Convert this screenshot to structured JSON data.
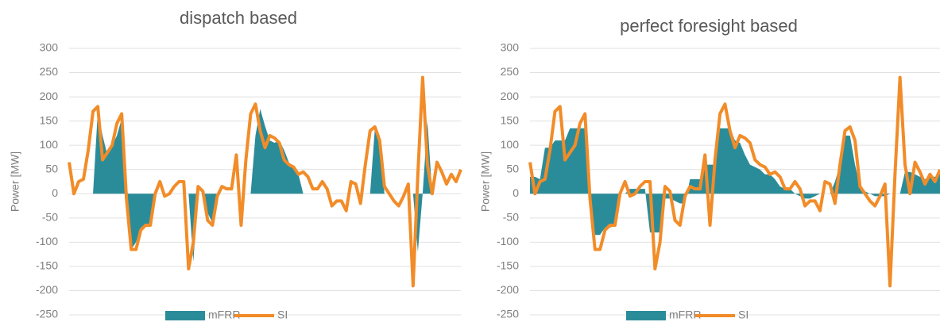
{
  "chart_data": [
    {
      "type": "area_line",
      "title": "dispatch based",
      "ylabel": "Power [MW]",
      "categories": [
        null,
        null,
        null,
        null,
        null,
        null,
        null,
        null,
        null,
        null,
        null,
        null,
        null,
        null,
        null,
        null,
        null,
        null,
        null,
        null,
        null,
        null,
        null,
        null,
        null,
        null,
        null,
        null,
        null,
        null,
        null,
        null,
        null,
        null,
        null,
        null,
        null,
        null,
        null,
        null,
        null,
        null,
        null,
        null,
        null,
        null,
        null,
        null,
        null,
        null,
        null,
        null,
        null,
        null,
        null,
        null,
        null,
        null,
        null,
        null,
        null,
        null,
        null,
        null,
        null,
        null,
        null,
        null,
        null,
        null,
        null,
        null,
        null,
        null,
        null,
        null,
        null,
        null,
        null,
        null,
        null,
        null,
        null
      ],
      "ylim": [
        -250,
        300
      ],
      "yticks": [
        -250,
        -200,
        -150,
        -100,
        -50,
        0,
        50,
        100,
        150,
        200,
        250,
        300
      ],
      "grid": true,
      "series": [
        {
          "name": "mFRR",
          "type": "area",
          "color": "#2b8c99",
          "values": [
            0,
            0,
            0,
            0,
            0,
            0,
            170,
            120,
            80,
            100,
            120,
            155,
            0,
            -115,
            -100,
            -70,
            -65,
            -60,
            0,
            0,
            0,
            0,
            0,
            0,
            0,
            0,
            -140,
            0,
            0,
            -40,
            -60,
            0,
            0,
            0,
            0,
            0,
            0,
            0,
            0,
            120,
            175,
            140,
            110,
            105,
            110,
            90,
            65,
            55,
            40,
            0,
            0,
            0,
            0,
            0,
            0,
            0,
            0,
            0,
            0,
            0,
            0,
            0,
            0,
            0,
            135,
            120,
            0,
            0,
            0,
            0,
            0,
            0,
            0,
            -120,
            0,
            150,
            0,
            0,
            0,
            0,
            0,
            0,
            0
          ]
        },
        {
          "name": "SI",
          "type": "line",
          "color": "#f28c28",
          "values": [
            65,
            0,
            25,
            30,
            90,
            170,
            180,
            70,
            85,
            100,
            145,
            165,
            -10,
            -115,
            -115,
            -75,
            -65,
            -65,
            0,
            25,
            -5,
            0,
            15,
            25,
            25,
            -155,
            -100,
            15,
            5,
            -55,
            -65,
            -5,
            15,
            10,
            10,
            80,
            -65,
            70,
            165,
            185,
            130,
            95,
            120,
            115,
            105,
            70,
            60,
            55,
            40,
            45,
            35,
            10,
            10,
            25,
            10,
            -25,
            -15,
            -15,
            -35,
            25,
            20,
            -20,
            60,
            130,
            138,
            110,
            15,
            0,
            -15,
            -25,
            -5,
            20,
            -190,
            40,
            240,
            60,
            0,
            65,
            45,
            20,
            40,
            25,
            50
          ]
        }
      ]
    },
    {
      "type": "area_line",
      "title": "perfect foresight based",
      "ylabel": "Power [MW]",
      "categories": [
        null,
        null,
        null,
        null,
        null,
        null,
        null,
        null,
        null,
        null,
        null,
        null,
        null,
        null,
        null,
        null,
        null,
        null,
        null,
        null,
        null,
        null,
        null,
        null,
        null,
        null,
        null,
        null,
        null,
        null,
        null,
        null,
        null,
        null,
        null,
        null,
        null,
        null,
        null,
        null,
        null,
        null,
        null,
        null,
        null,
        null,
        null,
        null,
        null,
        null,
        null,
        null,
        null,
        null,
        null,
        null,
        null,
        null,
        null,
        null,
        null,
        null,
        null,
        null,
        null,
        null,
        null,
        null,
        null,
        null,
        null,
        null,
        null,
        null,
        null,
        null,
        null,
        null,
        null,
        null,
        null,
        null,
        null
      ],
      "ylim": [
        -250,
        300
      ],
      "yticks": [
        -250,
        -200,
        -150,
        -100,
        -50,
        0,
        50,
        100,
        150,
        200,
        250,
        300
      ],
      "grid": true,
      "series": [
        {
          "name": "mFRR",
          "type": "area",
          "color": "#2b8c99",
          "values": [
            35,
            35,
            30,
            95,
            95,
            110,
            110,
            110,
            135,
            135,
            135,
            135,
            -5,
            -85,
            -85,
            -70,
            -70,
            -65,
            0,
            0,
            10,
            10,
            10,
            10,
            -80,
            -80,
            -80,
            -10,
            -10,
            -15,
            -20,
            -20,
            30,
            30,
            30,
            60,
            60,
            60,
            135,
            135,
            135,
            110,
            105,
            80,
            60,
            55,
            50,
            40,
            40,
            30,
            15,
            10,
            10,
            0,
            -5,
            -10,
            -10,
            -5,
            0,
            0,
            0,
            25,
            60,
            120,
            120,
            60,
            15,
            5,
            0,
            -5,
            -5,
            -5,
            0,
            0,
            0,
            45,
            45,
            40,
            35,
            30,
            35,
            35,
            40
          ]
        },
        {
          "name": "SI",
          "type": "line",
          "color": "#f28c28",
          "values": [
            65,
            0,
            25,
            30,
            90,
            170,
            180,
            70,
            85,
            100,
            145,
            165,
            -10,
            -115,
            -115,
            -75,
            -65,
            -65,
            0,
            25,
            -5,
            0,
            15,
            25,
            25,
            -155,
            -100,
            15,
            5,
            -55,
            -65,
            -5,
            15,
            10,
            10,
            80,
            -65,
            70,
            165,
            185,
            130,
            95,
            120,
            115,
            105,
            70,
            60,
            55,
            40,
            45,
            35,
            10,
            10,
            25,
            10,
            -25,
            -15,
            -15,
            -35,
            25,
            20,
            -20,
            60,
            130,
            138,
            110,
            15,
            0,
            -15,
            -25,
            -5,
            20,
            -190,
            40,
            240,
            60,
            0,
            65,
            45,
            20,
            40,
            25,
            50
          ]
        }
      ]
    }
  ]
}
